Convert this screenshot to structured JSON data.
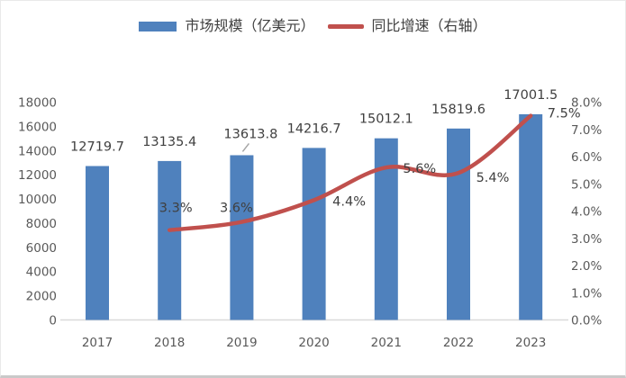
{
  "legend": {
    "items": [
      {
        "label": "市场规模（亿美元）",
        "color": "#4F81BD",
        "marker": "bar"
      },
      {
        "label": "同比增速（右轴）",
        "color": "#C0504D",
        "marker": "line"
      }
    ]
  },
  "chart_data": {
    "type": "bar",
    "categories": [
      "2017",
      "2018",
      "2019",
      "2020",
      "2021",
      "2022",
      "2023"
    ],
    "series": [
      {
        "name": "市场规模（亿美元）",
        "type": "bar",
        "axis": "left",
        "color": "#4F81BD",
        "values": [
          12719.7,
          13135.4,
          13613.8,
          14216.7,
          15012.1,
          15819.6,
          17001.5
        ],
        "data_labels": [
          "12719.7",
          "13135.4",
          "13613.8",
          "14216.7",
          "15012.1",
          "15819.6",
          "17001.5"
        ]
      },
      {
        "name": "同比增速（右轴）",
        "type": "line",
        "axis": "right",
        "color": "#C0504D",
        "values": [
          null,
          3.3,
          3.6,
          4.4,
          5.6,
          5.4,
          7.5
        ],
        "data_labels": [
          null,
          "3.3%",
          "3.6%",
          "4.4%",
          "5.6%",
          "5.4%",
          "7.5%"
        ]
      }
    ],
    "left_axis": {
      "min": 0,
      "max": 18000,
      "step": 2000,
      "tick_labels": [
        "0",
        "2000",
        "4000",
        "6000",
        "8000",
        "10000",
        "12000",
        "14000",
        "16000",
        "18000"
      ]
    },
    "right_axis": {
      "min": 0,
      "max": 8,
      "step": 1,
      "tick_labels": [
        "0.0%",
        "1.0%",
        "2.0%",
        "3.0%",
        "4.0%",
        "5.0%",
        "6.0%",
        "7.0%",
        "8.0%"
      ]
    },
    "legend_position": "top",
    "grid": false,
    "background_color": "#ffffff",
    "axis_line_color": "#d9d9d9",
    "data_label_color": "#404040",
    "axis_text_color": "#595959",
    "leader_line_color": "#a6a6a6"
  }
}
